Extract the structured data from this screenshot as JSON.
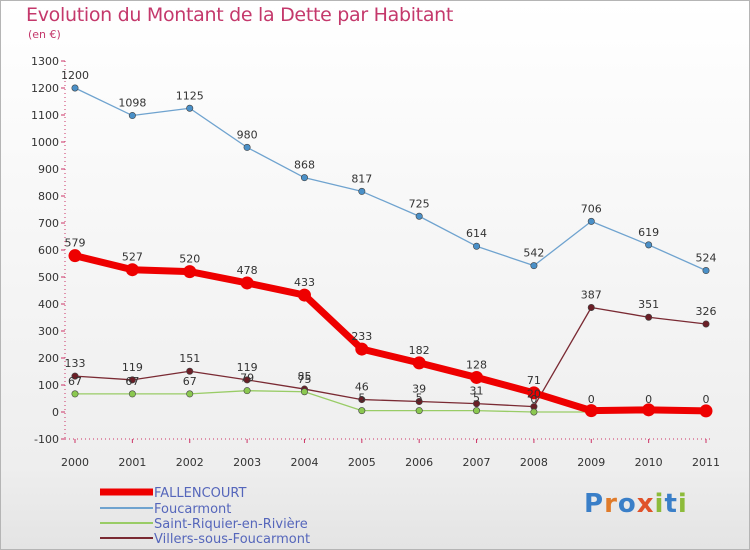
{
  "chart_data": {
    "type": "line",
    "title": "Evolution du Montant de la Dette par Habitant",
    "subtitle": "(en €)",
    "x": [
      "2000",
      "2001",
      "2002",
      "2003",
      "2004",
      "2005",
      "2006",
      "2007",
      "2008",
      "2009",
      "2010",
      "2011"
    ],
    "ylim": [
      -100,
      1300
    ],
    "yticks": [
      -100,
      0,
      100,
      200,
      300,
      400,
      500,
      600,
      700,
      800,
      900,
      1000,
      1100,
      1200,
      1300
    ],
    "grid": false,
    "legend_position": "bottom-left",
    "series": [
      {
        "name": "FALLENCOURT",
        "color": "#ee0000",
        "values": [
          579,
          527,
          520,
          478,
          433,
          233,
          182,
          128,
          71,
          5,
          8,
          4
        ],
        "labels": [
          "579",
          "527",
          "520",
          "478",
          "433",
          "233",
          "182",
          "128",
          "71",
          "",
          "",
          ""
        ]
      },
      {
        "name": "Foucarmont",
        "color": "#6fa3cf",
        "values": [
          1200,
          1098,
          1125,
          980,
          868,
          817,
          725,
          614,
          542,
          706,
          619,
          524
        ],
        "labels": [
          "1200",
          "1098",
          "1125",
          "980",
          "868",
          "817",
          "725",
          "614",
          "542",
          "706",
          "619",
          "524"
        ]
      },
      {
        "name": "Saint-Riquier-en-Rivière",
        "color": "#99cc66",
        "values": [
          67,
          67,
          67,
          79,
          75,
          5,
          5,
          5,
          0,
          0,
          0,
          0
        ],
        "labels": [
          "67",
          "67",
          "67",
          "79",
          "75",
          "5",
          "5",
          "5",
          "0",
          "0",
          "0",
          "0"
        ]
      },
      {
        "name": "Villers-sous-Foucarmont",
        "color": "#7a2a33",
        "values": [
          133,
          119,
          151,
          119,
          85,
          46,
          39,
          31,
          20,
          387,
          351,
          326
        ],
        "labels": [
          "133",
          "119",
          "151",
          "119",
          "85",
          "46",
          "39",
          "31",
          "20",
          "387",
          "351",
          "326"
        ]
      }
    ]
  },
  "branding": {
    "logo_text": "Proxiti"
  }
}
